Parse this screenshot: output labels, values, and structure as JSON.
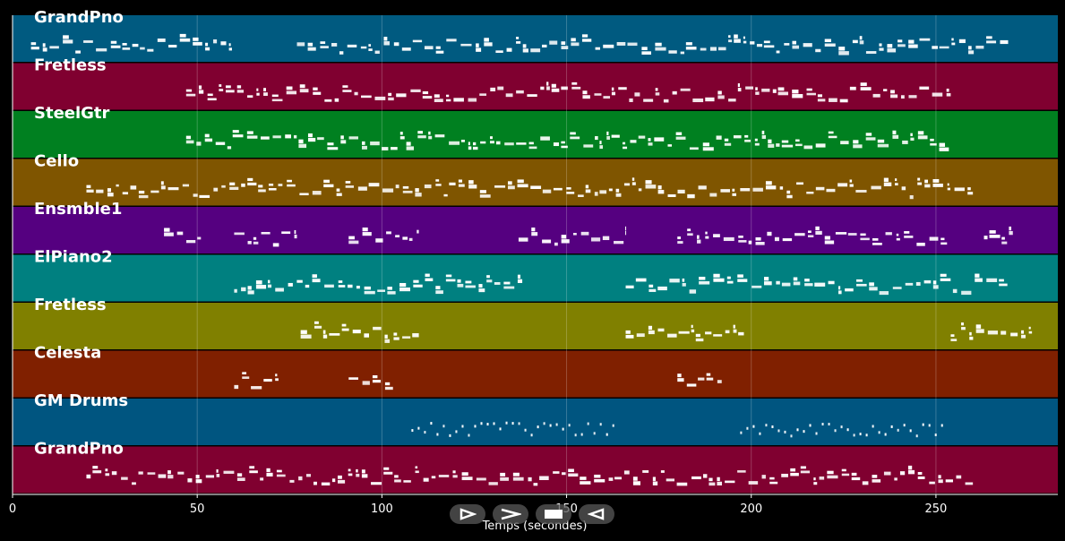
{
  "chart_data": {
    "type": "piano-roll",
    "xlabel": "Temps (secondes)",
    "xlim": [
      0,
      283
    ],
    "xticks": [
      0,
      50,
      100,
      150,
      200,
      250
    ],
    "grid": true,
    "tracks": [
      {
        "name": "GrandPno",
        "color": "#005a80",
        "segments": [
          [
            5,
            60
          ],
          [
            77,
            270
          ]
        ]
      },
      {
        "name": "Fretless",
        "color": "#800030",
        "segments": [
          [
            47,
            254
          ]
        ]
      },
      {
        "name": "SteelGtr",
        "color": "#008020",
        "segments": [
          [
            47,
            254
          ]
        ]
      },
      {
        "name": "Cello",
        "color": "#7f5500",
        "segments": [
          [
            20,
            260
          ]
        ]
      },
      {
        "name": "Ensmble1",
        "color": "#550080",
        "segments": [
          [
            41,
            51
          ],
          [
            60,
            77
          ],
          [
            91,
            110
          ],
          [
            137,
            166
          ],
          [
            180,
            253
          ],
          [
            263,
            272
          ]
        ]
      },
      {
        "name": "ElPiano2",
        "color": "#008080",
        "segments": [
          [
            60,
            138
          ],
          [
            166,
            270
          ]
        ]
      },
      {
        "name": "Fretless",
        "color": "#808000",
        "segments": [
          [
            78,
            110
          ],
          [
            166,
            198
          ],
          [
            254,
            276
          ]
        ]
      },
      {
        "name": "Celesta",
        "color": "#802000",
        "segments": [
          [
            60,
            72
          ],
          [
            91,
            103
          ],
          [
            180,
            192
          ]
        ]
      },
      {
        "name": "GM Drums",
        "color": "#005580",
        "segments": [
          [
            108,
            164
          ],
          [
            197,
            252
          ]
        ]
      },
      {
        "name": "GrandPno",
        "color": "#800030",
        "segments": [
          [
            20,
            260
          ]
        ]
      }
    ]
  },
  "controls": [
    {
      "name": "play-icon"
    },
    {
      "name": "forward-icon"
    },
    {
      "name": "stop-icon"
    },
    {
      "name": "rewind-icon"
    }
  ]
}
